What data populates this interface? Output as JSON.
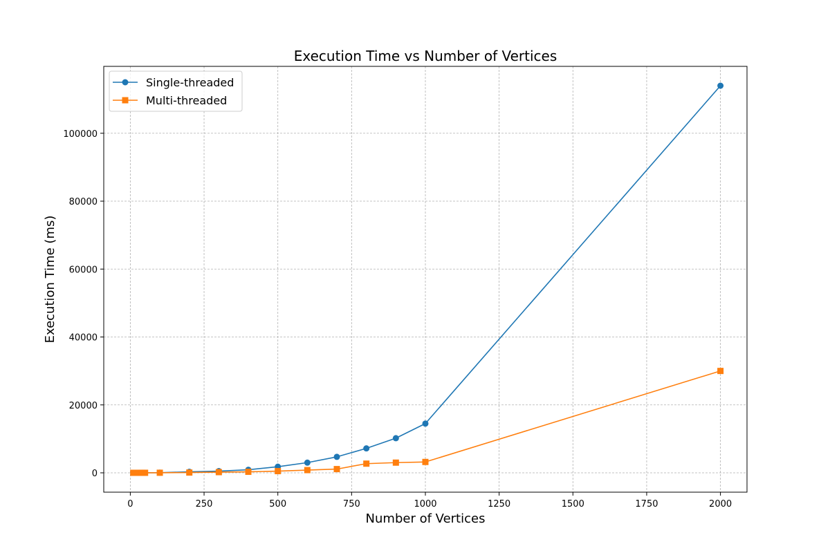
{
  "chart_data": {
    "type": "line",
    "title": "Execution Time vs Number of Vertices",
    "xlabel": "Number of Vertices",
    "ylabel": "Execution Time (ms)",
    "xlim": [
      -90,
      2090
    ],
    "ylim": [
      -5700,
      119700
    ],
    "xticks": [
      0,
      250,
      500,
      750,
      1000,
      1250,
      1500,
      1750,
      2000
    ],
    "yticks": [
      0,
      20000,
      40000,
      60000,
      80000,
      100000
    ],
    "grid": true,
    "legend": "top-left",
    "x": [
      10,
      20,
      30,
      40,
      50,
      100,
      200,
      300,
      400,
      500,
      600,
      700,
      800,
      900,
      1000,
      2000
    ],
    "series": [
      {
        "name": "Single-threaded",
        "color": "#1f77b4",
        "marker": "circle",
        "values": [
          1,
          2,
          4,
          7,
          10,
          40,
          300,
          500,
          900,
          1800,
          3000,
          4700,
          7200,
          10200,
          14500,
          114000
        ]
      },
      {
        "name": "Multi-threaded",
        "color": "#ff7f0e",
        "marker": "square",
        "values": [
          1,
          2,
          3,
          5,
          7,
          20,
          80,
          200,
          300,
          500,
          800,
          1100,
          2700,
          3000,
          3200,
          30000
        ]
      }
    ]
  }
}
